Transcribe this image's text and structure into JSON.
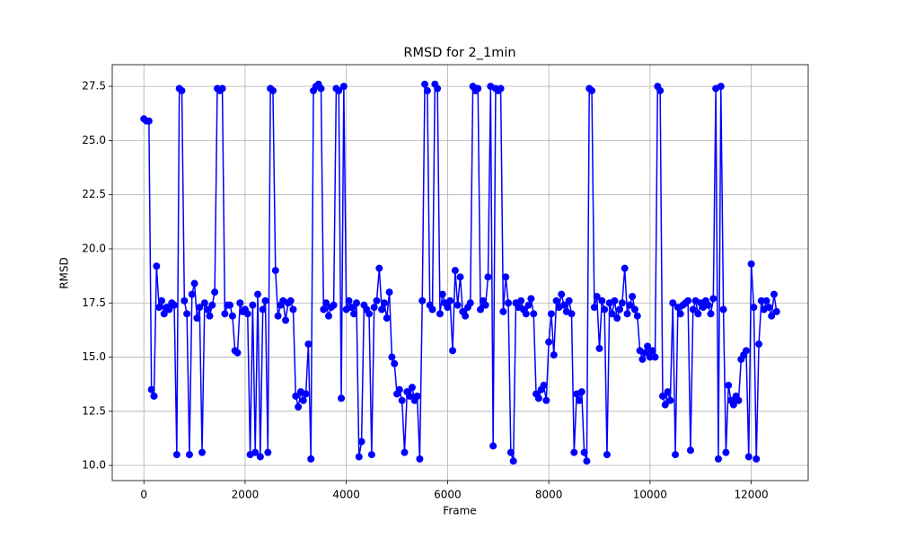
{
  "chart_data": {
    "type": "line",
    "title": "RMSD for 2_1min",
    "x_label": "Frame",
    "y_label": "RMSD",
    "color": "#0000ff",
    "grid": true,
    "xlim": [
      -625,
      13125
    ],
    "ylim": [
      9.3,
      28.5
    ],
    "xticks": [
      0,
      2000,
      4000,
      6000,
      8000,
      10000,
      12000
    ],
    "yticks": [
      {
        "value": 10,
        "label": "10.0"
      },
      12.5,
      {
        "value": 15,
        "label": "15.0"
      },
      17.5,
      {
        "value": 20,
        "label": "20.0"
      },
      22.5,
      {
        "value": 25,
        "label": "25.0"
      },
      27.5
    ],
    "x": [
      0,
      50,
      100,
      150,
      200,
      250,
      300,
      350,
      400,
      450,
      500,
      550,
      600,
      650,
      700,
      750,
      800,
      850,
      900,
      950,
      1000,
      1050,
      1100,
      1150,
      1200,
      1250,
      1300,
      1350,
      1400,
      1450,
      1500,
      1550,
      1600,
      1650,
      1700,
      1750,
      1800,
      1850,
      1900,
      1950,
      2000,
      2050,
      2100,
      2150,
      2200,
      2250,
      2300,
      2350,
      2400,
      2450,
      2500,
      2550,
      2600,
      2650,
      2700,
      2750,
      2800,
      2850,
      2900,
      2950,
      3000,
      3050,
      3100,
      3150,
      3200,
      3250,
      3300,
      3350,
      3400,
      3450,
      3500,
      3550,
      3600,
      3650,
      3700,
      3750,
      3800,
      3850,
      3900,
      3950,
      4000,
      4050,
      4100,
      4150,
      4200,
      4250,
      4300,
      4350,
      4400,
      4450,
      4500,
      4550,
      4600,
      4650,
      4700,
      4750,
      4800,
      4850,
      4900,
      4950,
      5000,
      5050,
      5100,
      5150,
      5200,
      5250,
      5300,
      5350,
      5400,
      5450,
      5500,
      5550,
      5600,
      5650,
      5700,
      5750,
      5800,
      5850,
      5900,
      5950,
      6000,
      6050,
      6100,
      6150,
      6200,
      6250,
      6300,
      6350,
      6400,
      6450,
      6500,
      6550,
      6600,
      6650,
      6700,
      6750,
      6800,
      6850,
      6900,
      6950,
      7000,
      7050,
      7100,
      7150,
      7200,
      7250,
      7300,
      7350,
      7400,
      7450,
      7500,
      7550,
      7600,
      7650,
      7700,
      7750,
      7800,
      7850,
      7900,
      7950,
      8000,
      8050,
      8100,
      8150,
      8200,
      8250,
      8300,
      8350,
      8400,
      8450,
      8500,
      8550,
      8600,
      8650,
      8700,
      8750,
      8800,
      8850,
      8900,
      8950,
      9000,
      9050,
      9100,
      9150,
      9200,
      9250,
      9300,
      9350,
      9400,
      9450,
      9500,
      9550,
      9600,
      9650,
      9700,
      9750,
      9800,
      9850,
      9900,
      9950,
      10000,
      10050,
      10100,
      10150,
      10200,
      10250,
      10300,
      10350,
      10400,
      10450,
      10500,
      10550,
      10600,
      10650,
      10700,
      10750,
      10800,
      10850,
      10900,
      10950,
      11000,
      11050,
      11100,
      11150,
      11200,
      11250,
      11300,
      11350,
      11400,
      11450,
      11500,
      11550,
      11600,
      11650,
      11700,
      11750,
      11800,
      11850,
      11900,
      11950,
      12000,
      12050,
      12100,
      12150,
      12200,
      12250,
      12300,
      12350,
      12400,
      12450,
      12500
    ],
    "values": [
      26.0,
      25.9,
      25.9,
      13.5,
      13.2,
      19.2,
      17.3,
      17.6,
      17.0,
      17.3,
      17.2,
      17.5,
      17.4,
      10.5,
      27.4,
      27.3,
      17.6,
      17.0,
      10.5,
      17.9,
      18.4,
      16.8,
      17.3,
      10.6,
      17.5,
      17.2,
      16.9,
      17.4,
      18.0,
      27.4,
      27.3,
      27.4,
      17.0,
      17.4,
      17.4,
      16.9,
      15.3,
      15.2,
      17.5,
      17.1,
      17.2,
      17.0,
      10.5,
      17.4,
      10.6,
      17.9,
      10.4,
      17.2,
      17.6,
      10.6,
      27.4,
      27.3,
      19.0,
      16.9,
      17.4,
      17.6,
      16.7,
      17.5,
      17.6,
      17.2,
      13.2,
      12.7,
      13.4,
      13.0,
      13.3,
      15.6,
      10.3,
      27.3,
      27.5,
      27.6,
      27.4,
      17.2,
      17.5,
      16.9,
      17.3,
      17.4,
      27.4,
      27.3,
      13.1,
      27.5,
      17.2,
      17.6,
      17.3,
      17.0,
      17.5,
      10.4,
      11.1,
      17.4,
      17.2,
      17.0,
      10.5,
      17.3,
      17.6,
      19.1,
      17.2,
      17.5,
      16.8,
      18.0,
      15.0,
      14.7,
      13.3,
      13.5,
      13.0,
      10.6,
      13.4,
      13.2,
      13.6,
      13.0,
      13.2,
      10.3,
      17.6,
      27.6,
      27.3,
      17.4,
      17.2,
      27.6,
      27.4,
      17.0,
      17.9,
      17.5,
      17.3,
      17.6,
      15.3,
      19.0,
      17.4,
      18.7,
      17.1,
      16.9,
      17.3,
      17.5,
      27.5,
      27.3,
      27.4,
      17.2,
      17.6,
      17.4,
      18.7,
      27.5,
      10.9,
      27.4,
      27.3,
      27.4,
      17.1,
      18.7,
      17.5,
      10.6,
      10.2,
      17.5,
      17.3,
      17.6,
      17.2,
      17.0,
      17.4,
      17.7,
      17.0,
      13.3,
      13.1,
      13.5,
      13.7,
      13.0,
      15.7,
      17.0,
      15.1,
      17.6,
      17.3,
      17.9,
      17.4,
      17.1,
      17.6,
      17.0,
      10.6,
      13.3,
      13.0,
      13.4,
      10.6,
      10.2,
      27.4,
      27.3,
      17.3,
      17.8,
      15.4,
      17.6,
      17.2,
      10.5,
      17.5,
      17.0,
      17.6,
      16.8,
      17.2,
      17.5,
      19.1,
      17.0,
      17.4,
      17.8,
      17.2,
      16.9,
      15.3,
      14.9,
      15.2,
      15.5,
      15.0,
      15.3,
      15.0,
      27.5,
      27.3,
      13.2,
      12.8,
      13.4,
      13.0,
      17.5,
      10.5,
      17.3,
      17.0,
      17.4,
      17.5,
      17.6,
      10.7,
      17.2,
      17.6,
      17.0,
      17.5,
      17.3,
      17.6,
      17.4,
      17.0,
      17.7,
      27.4,
      10.3,
      27.5,
      17.2,
      10.6,
      13.7,
      13.0,
      12.8,
      13.2,
      13.0,
      14.9,
      15.1,
      15.3,
      10.4,
      19.3,
      17.3,
      10.3,
      15.6,
      17.6,
      17.2,
      17.6,
      17.3,
      16.9,
      17.9,
      17.1
    ]
  }
}
